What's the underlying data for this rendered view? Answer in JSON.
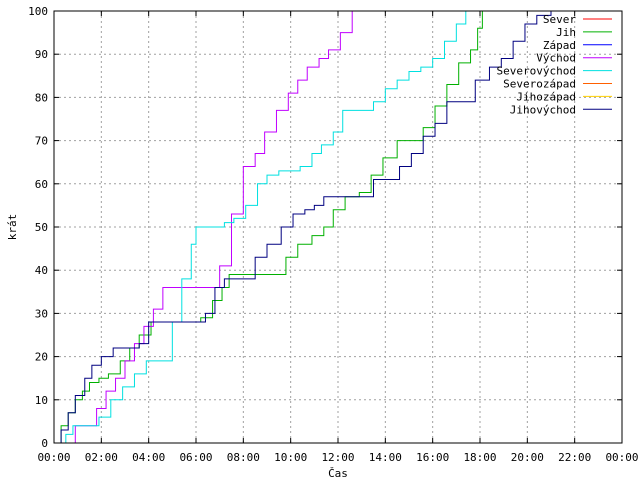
{
  "chart_data": {
    "type": "line",
    "title": "",
    "xlabel": "Čas",
    "ylabel": "krát",
    "xlim": [
      0,
      24
    ],
    "ylim": [
      0,
      100
    ],
    "grid": true,
    "legend_position": "top-right",
    "x_tick_labels": [
      "00:00",
      "02:00",
      "04:00",
      "06:00",
      "08:00",
      "10:00",
      "12:00",
      "14:00",
      "16:00",
      "18:00",
      "20:00",
      "22:00",
      "00:00"
    ],
    "y_tick_labels": [
      "0",
      "10",
      "20",
      "30",
      "40",
      "50",
      "60",
      "70",
      "80",
      "90",
      "100"
    ],
    "series": [
      {
        "name": "Sever",
        "color": "#ff0000",
        "points": []
      },
      {
        "name": "Jih",
        "color": "#00b000",
        "points": [
          [
            0.1,
            0
          ],
          [
            0.3,
            4
          ],
          [
            0.6,
            7
          ],
          [
            0.9,
            10
          ],
          [
            1.2,
            12
          ],
          [
            1.5,
            14
          ],
          [
            1.9,
            15
          ],
          [
            2.3,
            16
          ],
          [
            2.8,
            19
          ],
          [
            3.2,
            22
          ],
          [
            3.6,
            25
          ],
          [
            4.1,
            28
          ],
          [
            4.9,
            28
          ],
          [
            5.3,
            28
          ],
          [
            6.2,
            29
          ],
          [
            6.7,
            33
          ],
          [
            7.1,
            36
          ],
          [
            7.4,
            39
          ],
          [
            8.0,
            39
          ],
          [
            9.2,
            39
          ],
          [
            9.8,
            43
          ],
          [
            10.3,
            46
          ],
          [
            10.9,
            48
          ],
          [
            11.4,
            50
          ],
          [
            11.8,
            54
          ],
          [
            12.3,
            57
          ],
          [
            12.9,
            58
          ],
          [
            13.4,
            62
          ],
          [
            13.9,
            66
          ],
          [
            14.5,
            70
          ],
          [
            15.0,
            70
          ],
          [
            15.6,
            73
          ],
          [
            16.1,
            78
          ],
          [
            16.6,
            83
          ],
          [
            17.1,
            88
          ],
          [
            17.6,
            91
          ],
          [
            17.9,
            96
          ],
          [
            18.1,
            100
          ]
        ]
      },
      {
        "name": "Západ",
        "color": "#0000ff",
        "points": []
      },
      {
        "name": "Východ",
        "color": "#c000ff",
        "points": [
          [
            0.7,
            0
          ],
          [
            0.9,
            4
          ],
          [
            1.3,
            4
          ],
          [
            1.8,
            8
          ],
          [
            2.2,
            12
          ],
          [
            2.6,
            15
          ],
          [
            3.0,
            19
          ],
          [
            3.4,
            23
          ],
          [
            3.8,
            27
          ],
          [
            4.2,
            31
          ],
          [
            4.6,
            36
          ],
          [
            5.3,
            36
          ],
          [
            6.0,
            36
          ],
          [
            6.6,
            36
          ],
          [
            7.0,
            41
          ],
          [
            7.5,
            53
          ],
          [
            8.0,
            64
          ],
          [
            8.5,
            67
          ],
          [
            8.9,
            72
          ],
          [
            9.4,
            77
          ],
          [
            9.9,
            81
          ],
          [
            10.3,
            84
          ],
          [
            10.7,
            87
          ],
          [
            11.2,
            89
          ],
          [
            11.6,
            91
          ],
          [
            12.1,
            95
          ],
          [
            12.6,
            100
          ]
        ]
      },
      {
        "name": "Severovýchod",
        "color": "#00e0e0",
        "points": [
          [
            0.2,
            0
          ],
          [
            0.5,
            2
          ],
          [
            0.8,
            4
          ],
          [
            1.4,
            4
          ],
          [
            1.9,
            6
          ],
          [
            2.4,
            10
          ],
          [
            2.9,
            13
          ],
          [
            3.4,
            16
          ],
          [
            3.9,
            19
          ],
          [
            4.6,
            19
          ],
          [
            5.0,
            28
          ],
          [
            5.4,
            38
          ],
          [
            5.8,
            46
          ],
          [
            6.0,
            50
          ],
          [
            6.8,
            50
          ],
          [
            7.2,
            51
          ],
          [
            7.6,
            52
          ],
          [
            8.1,
            55
          ],
          [
            8.6,
            60
          ],
          [
            9.0,
            62
          ],
          [
            9.5,
            63
          ],
          [
            10.0,
            63
          ],
          [
            10.4,
            64
          ],
          [
            10.9,
            67
          ],
          [
            11.3,
            69
          ],
          [
            11.8,
            72
          ],
          [
            12.2,
            77
          ],
          [
            13.0,
            77
          ],
          [
            13.5,
            79
          ],
          [
            14.0,
            82
          ],
          [
            14.5,
            84
          ],
          [
            15.0,
            86
          ],
          [
            15.5,
            87
          ],
          [
            16.0,
            89
          ],
          [
            16.5,
            93
          ],
          [
            17.0,
            97
          ],
          [
            17.4,
            100
          ]
        ]
      },
      {
        "name": "Severozápad",
        "color": "#ff6000",
        "points": []
      },
      {
        "name": "Jihozápad",
        "color": "#ffd000",
        "points": []
      },
      {
        "name": "Jihovýchod",
        "color": "#000080",
        "points": [
          [
            0.1,
            0
          ],
          [
            0.3,
            3
          ],
          [
            0.6,
            7
          ],
          [
            0.9,
            11
          ],
          [
            1.3,
            15
          ],
          [
            1.6,
            18
          ],
          [
            2.0,
            20
          ],
          [
            2.5,
            22
          ],
          [
            3.1,
            22
          ],
          [
            3.6,
            23
          ],
          [
            4.0,
            28
          ],
          [
            4.5,
            28
          ],
          [
            5.2,
            28
          ],
          [
            6.0,
            28
          ],
          [
            6.4,
            30
          ],
          [
            6.8,
            36
          ],
          [
            7.2,
            38
          ],
          [
            8.0,
            38
          ],
          [
            8.5,
            43
          ],
          [
            9.0,
            46
          ],
          [
            9.6,
            50
          ],
          [
            10.1,
            53
          ],
          [
            10.6,
            54
          ],
          [
            11.0,
            55
          ],
          [
            11.4,
            57
          ],
          [
            12.0,
            57
          ],
          [
            13.0,
            57
          ],
          [
            13.5,
            61
          ],
          [
            14.0,
            61
          ],
          [
            14.6,
            64
          ],
          [
            15.1,
            67
          ],
          [
            15.6,
            71
          ],
          [
            16.1,
            74
          ],
          [
            16.6,
            79
          ],
          [
            17.3,
            79
          ],
          [
            17.8,
            84
          ],
          [
            18.4,
            87
          ],
          [
            18.9,
            89
          ],
          [
            19.4,
            93
          ],
          [
            19.9,
            97
          ],
          [
            20.4,
            99
          ],
          [
            21.0,
            100
          ]
        ]
      }
    ]
  }
}
